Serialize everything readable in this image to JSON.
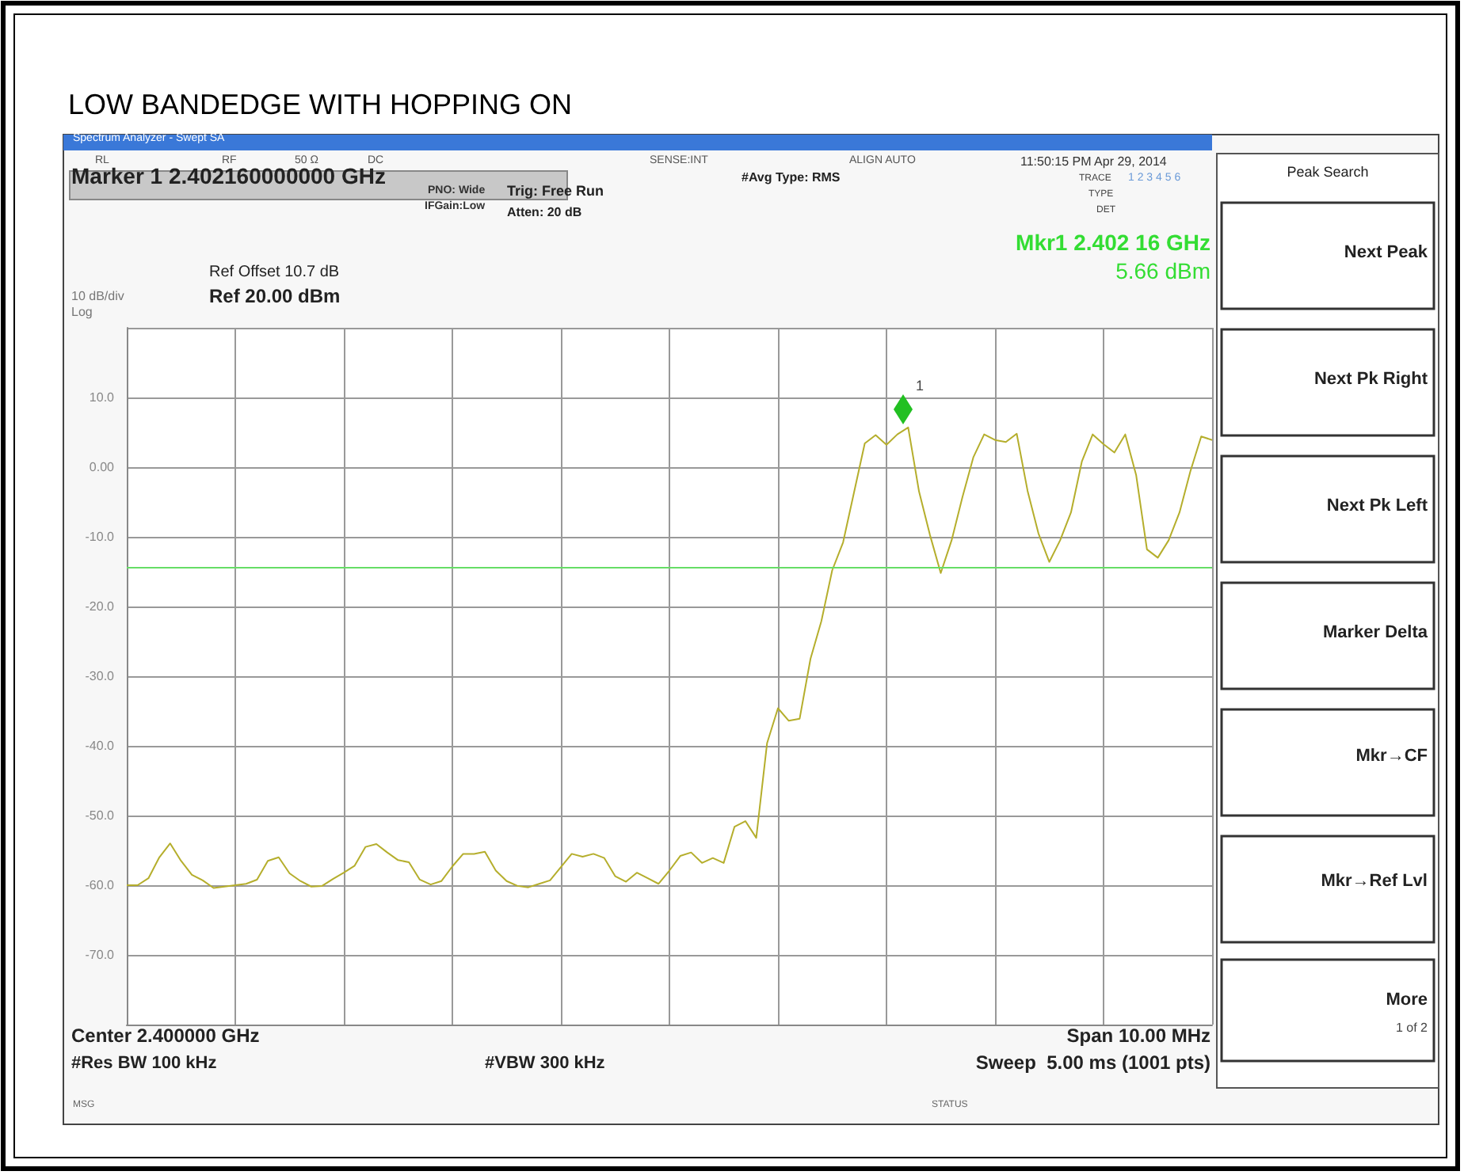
{
  "chart_data": {
    "type": "line",
    "title": "LOW BANDEDGE WITH HOPPING ON",
    "categories": [
      null,
      null,
      null,
      null,
      null,
      null,
      null,
      null,
      null,
      null,
      null,
      null,
      null,
      null,
      null,
      null,
      null,
      null,
      null,
      null,
      null,
      null,
      null,
      null,
      null,
      null,
      null,
      null,
      null,
      null,
      null,
      null,
      null,
      null,
      null,
      null,
      null,
      null,
      null,
      null,
      null,
      null,
      null,
      null,
      null,
      null,
      null,
      null,
      null,
      null,
      null,
      null,
      null,
      null,
      null,
      null,
      null,
      null,
      null,
      null,
      null,
      null,
      null,
      null,
      null,
      null,
      null,
      null,
      null,
      null,
      null,
      null,
      null,
      null,
      null,
      null,
      null,
      null,
      null,
      null,
      null,
      null,
      null,
      null,
      null,
      null,
      null,
      null,
      null,
      null,
      null,
      null,
      null,
      null,
      null,
      null,
      null,
      null,
      null,
      null,
      null
    ],
    "ylim": [
      -80,
      20
    ],
    "yticks": [
      {
        "value": 20,
        "label": null
      },
      {
        "value": 10,
        "label": "10.0"
      },
      {
        "value": 0,
        "label": "0.00"
      },
      {
        "value": -10,
        "label": "-10.0"
      },
      {
        "value": -20,
        "label": "-20.0"
      },
      {
        "value": -30,
        "label": "-30.0"
      },
      {
        "value": -40,
        "label": "-40.0"
      },
      {
        "value": -50,
        "label": "-50.0"
      },
      {
        "value": -60,
        "label": "-60.0"
      },
      {
        "value": -70,
        "label": "-70.0"
      },
      {
        "value": -80,
        "label": null
      }
    ],
    "tick_labels": "y",
    "grid": true,
    "series": [
      {
        "color": "#b5ae2c",
        "marker": "none",
        "line_style": "solid",
        "values": [
          -60,
          -60,
          -59,
          -56,
          -54,
          -56.5,
          -58.5,
          -59.3,
          -60.4,
          -60.2,
          -60,
          -59.8,
          -59.2,
          -56.5,
          -56,
          -58.3,
          -59.4,
          -60.2,
          -60.1,
          -59.1,
          -58.2,
          -57.2,
          -54.5,
          -54.1,
          -55.3,
          -56.4,
          -56.7,
          -59.2,
          -59.9,
          -59.4,
          -57.3,
          -55.5,
          -55.5,
          -55.2,
          -57.9,
          -59.4,
          -60.1,
          -60.3,
          -59.8,
          -59.3,
          -57.4,
          -55.5,
          -55.9,
          -55.5,
          -56.1,
          -58.7,
          -59.5,
          -58.2,
          -59,
          -59.8,
          -57.9,
          -55.8,
          -55.3,
          -56.8,
          -56.1,
          -56.8,
          -51.6,
          -50.8,
          -53.2,
          -39.6,
          -34.6,
          -36.4,
          -36.1,
          -27.5,
          -22.1,
          -14.8,
          -10.8,
          -3.7,
          3.4,
          4.6,
          3.2,
          4.7,
          5.7,
          -3.5,
          -9.7,
          -15.2,
          -10.5,
          -4.3,
          1.4,
          4.7,
          3.9,
          3.6,
          4.8,
          -3.4,
          -9.5,
          -13.6,
          -10.5,
          -6.5,
          0.8,
          4.7,
          3.3,
          2.1,
          4.7,
          -1.1,
          -11.8,
          -13,
          -10.5,
          -6.5,
          -0.6,
          4.4,
          3.9
        ]
      }
    ],
    "ref_lines": [
      {
        "axis": "y",
        "value": -14.3,
        "color": "#66dd66"
      }
    ],
    "annotations": [
      "Spectrum Analyzer - Swept SA",
      "RL",
      "RF",
      "50 Ω",
      "DC",
      "SENSE:INT",
      "ALIGN AUTO",
      "11:50:15 PM Apr 29, 2014",
      "Marker 1 2.402160000000 GHz",
      "PNO: Wide",
      "IFGain:Low",
      "Trig: Free Run",
      "Atten: 20 dB",
      "#Avg Type: RMS",
      "TRACE",
      "1 2 3 4 5 6",
      "TYPE",
      "DET",
      "Mkr1 2.402 16 GHz",
      "5.66 dBm",
      "Ref Offset 10.7 dB",
      "Ref 20.00 dBm",
      "10 dB/div",
      "Log",
      "Center 2.400000 GHz",
      "#Res BW 100 kHz",
      "#VBW 300 kHz",
      "Span 10.00 MHz",
      "Sweep  5.00 ms (1001 pts)",
      "MSG",
      "STATUS",
      "Peak Search",
      "Next Peak",
      "Next Pk Right",
      "Next Pk Left",
      "Marker Delta",
      "Mkr→CF",
      "Mkr→Ref Lvl",
      "More",
      "1 of 2",
      "1"
    ]
  }
}
